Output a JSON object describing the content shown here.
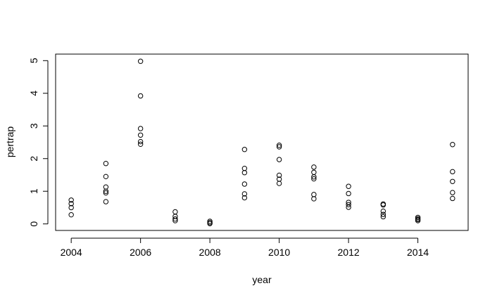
{
  "chart_data": {
    "type": "scatter",
    "title": "",
    "xlabel": "year",
    "ylabel": "pertrap",
    "xlim": [
      2003.55,
      2015.45
    ],
    "ylim": [
      -0.2,
      5.2
    ],
    "x_ticks": [
      2004,
      2006,
      2008,
      2010,
      2012,
      2014
    ],
    "y_ticks": [
      0,
      1,
      2,
      3,
      4,
      5
    ],
    "x_tick_labels": [
      "2004",
      "2006",
      "2008",
      "2010",
      "2012",
      "2014"
    ],
    "y_tick_labels": [
      "0",
      "1",
      "2",
      "3",
      "4",
      "5"
    ],
    "grid": false,
    "legend": "none",
    "marker": "open-circle",
    "color": "#000000",
    "points": [
      {
        "x": 2004,
        "y": 0.73
      },
      {
        "x": 2004,
        "y": 0.62
      },
      {
        "x": 2004,
        "y": 0.5
      },
      {
        "x": 2004,
        "y": 0.28
      },
      {
        "x": 2005,
        "y": 1.85
      },
      {
        "x": 2005,
        "y": 1.45
      },
      {
        "x": 2005,
        "y": 1.13
      },
      {
        "x": 2005,
        "y": 1.0
      },
      {
        "x": 2005,
        "y": 0.95
      },
      {
        "x": 2005,
        "y": 0.68
      },
      {
        "x": 2006,
        "y": 4.98
      },
      {
        "x": 2006,
        "y": 3.92
      },
      {
        "x": 2006,
        "y": 2.92
      },
      {
        "x": 2006,
        "y": 2.72
      },
      {
        "x": 2006,
        "y": 2.52
      },
      {
        "x": 2006,
        "y": 2.44
      },
      {
        "x": 2007,
        "y": 0.37
      },
      {
        "x": 2007,
        "y": 0.23
      },
      {
        "x": 2007,
        "y": 0.15
      },
      {
        "x": 2007,
        "y": 0.1
      },
      {
        "x": 2008,
        "y": 0.08
      },
      {
        "x": 2008,
        "y": 0.04
      },
      {
        "x": 2008,
        "y": 0.01
      },
      {
        "x": 2009,
        "y": 2.28
      },
      {
        "x": 2009,
        "y": 1.7
      },
      {
        "x": 2009,
        "y": 1.57
      },
      {
        "x": 2009,
        "y": 1.22
      },
      {
        "x": 2009,
        "y": 0.92
      },
      {
        "x": 2009,
        "y": 0.8
      },
      {
        "x": 2010,
        "y": 2.41
      },
      {
        "x": 2010,
        "y": 2.36
      },
      {
        "x": 2010,
        "y": 1.97
      },
      {
        "x": 2010,
        "y": 1.49
      },
      {
        "x": 2010,
        "y": 1.37
      },
      {
        "x": 2010,
        "y": 1.24
      },
      {
        "x": 2011,
        "y": 1.74
      },
      {
        "x": 2011,
        "y": 1.58
      },
      {
        "x": 2011,
        "y": 1.44
      },
      {
        "x": 2011,
        "y": 1.38
      },
      {
        "x": 2011,
        "y": 0.9
      },
      {
        "x": 2011,
        "y": 0.77
      },
      {
        "x": 2012,
        "y": 1.15
      },
      {
        "x": 2012,
        "y": 0.93
      },
      {
        "x": 2012,
        "y": 0.66
      },
      {
        "x": 2012,
        "y": 0.59
      },
      {
        "x": 2012,
        "y": 0.51
      },
      {
        "x": 2013,
        "y": 0.61
      },
      {
        "x": 2013,
        "y": 0.58
      },
      {
        "x": 2013,
        "y": 0.39
      },
      {
        "x": 2013,
        "y": 0.29
      },
      {
        "x": 2013,
        "y": 0.22
      },
      {
        "x": 2014,
        "y": 0.2
      },
      {
        "x": 2014,
        "y": 0.16
      },
      {
        "x": 2014,
        "y": 0.13
      },
      {
        "x": 2014,
        "y": 0.1
      },
      {
        "x": 2015,
        "y": 2.43
      },
      {
        "x": 2015,
        "y": 1.6
      },
      {
        "x": 2015,
        "y": 1.3
      },
      {
        "x": 2015,
        "y": 0.96
      },
      {
        "x": 2015,
        "y": 0.78
      }
    ]
  }
}
